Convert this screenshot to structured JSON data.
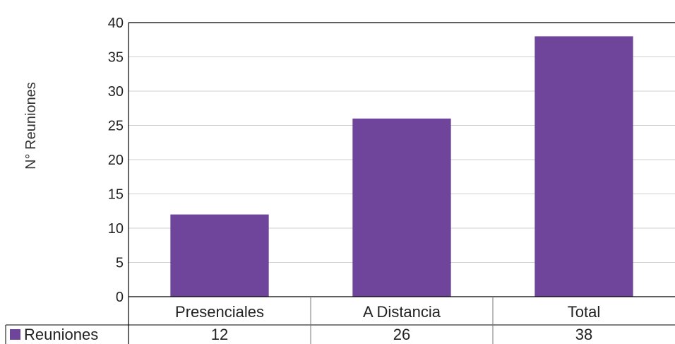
{
  "chart_data": {
    "type": "bar",
    "categories": [
      "Presenciales",
      "A Distancia",
      "Total"
    ],
    "series": [
      {
        "name": "Reuniones",
        "values": [
          12,
          26,
          38
        ],
        "color": "#6e459b"
      }
    ],
    "ylabel": "N° Reuniones",
    "ylim": [
      0,
      40
    ],
    "yticks": [
      0,
      5,
      10,
      15,
      20,
      25,
      30,
      35,
      40
    ],
    "grid": true,
    "legend": "data-table-left",
    "data_table": true
  }
}
